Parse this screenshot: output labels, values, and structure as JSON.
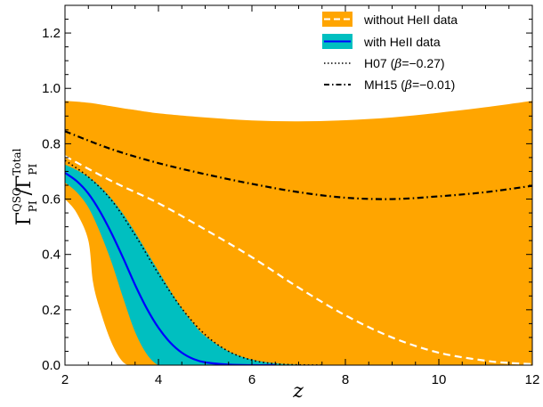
{
  "chart_data": {
    "type": "area",
    "xlabel": "z",
    "ylabel": {
      "main_left": "Γ",
      "sup_left": "QSO",
      "sub_left": "PI",
      "slash": "/",
      "main_right": "Γ",
      "sup_right": "Total",
      "sub_right": "PI"
    },
    "xlim": [
      2,
      12
    ],
    "ylim": [
      0,
      1.3
    ],
    "xticks": [
      2,
      4,
      6,
      8,
      10,
      12
    ],
    "xtick_labels": [
      "2",
      "4",
      "6",
      "8",
      "10",
      "12"
    ],
    "yticks": [
      0.0,
      0.2,
      0.4,
      0.6,
      0.8,
      1.0,
      1.2
    ],
    "ytick_labels": [
      "0.0",
      "0.2",
      "0.4",
      "0.6",
      "0.8",
      "1.0",
      "1.2"
    ],
    "grid": false,
    "legend_position": "top-right",
    "legend": [
      {
        "label": "without HeII data",
        "style": "orange-band-white-dashed"
      },
      {
        "label": "with HeII data",
        "style": "cyan-band-blue-solid"
      },
      {
        "label_prefix": "H07 (",
        "label_beta": "β",
        "label_suffix": "=−0.27)",
        "style": "dotted"
      },
      {
        "label_prefix": "MH15 (",
        "label_beta": "β",
        "label_suffix": "=−0.01)",
        "style": "dashdot"
      }
    ],
    "series": [
      {
        "name": "without HeII data",
        "kind": "band",
        "color": "#FFA500",
        "x": [
          2.0,
          2.25,
          2.5,
          2.6,
          2.75,
          3.0,
          3.25,
          3.5,
          4.0,
          5.0,
          6.0,
          7.0,
          8.0,
          9.0,
          10.0,
          11.0,
          12.0
        ],
        "upper": [
          0.955,
          0.952,
          0.948,
          0.946,
          0.942,
          0.935,
          0.928,
          0.922,
          0.91,
          0.895,
          0.884,
          0.881,
          0.885,
          0.895,
          0.912,
          0.932,
          0.955
        ],
        "lower": [
          0.6,
          0.55,
          0.45,
          0.3,
          0.2,
          0.08,
          0.01,
          0.0,
          0.0,
          0.0,
          0.0,
          0.0,
          0.0,
          0.0,
          0.0,
          0.0,
          0.0
        ]
      },
      {
        "name": "without HeII data median",
        "kind": "line",
        "color": "#FFFFFF",
        "dash": "dashed",
        "x": [
          2,
          3,
          4,
          5,
          6,
          7,
          8,
          9,
          10,
          11,
          11.5,
          12
        ],
        "y": [
          0.755,
          0.665,
          0.585,
          0.49,
          0.39,
          0.28,
          0.18,
          0.1,
          0.045,
          0.016,
          0.008,
          0.004
        ]
      },
      {
        "name": "with HeII data",
        "kind": "band",
        "color": "#00BFC0",
        "x": [
          2.0,
          2.25,
          2.5,
          2.75,
          3.0,
          3.25,
          3.5,
          3.75,
          4.0,
          4.25,
          4.5,
          4.75,
          5.0,
          5.5,
          6.0,
          6.5,
          7.0,
          7.5
        ],
        "upper": [
          0.725,
          0.705,
          0.68,
          0.645,
          0.6,
          0.545,
          0.48,
          0.41,
          0.34,
          0.27,
          0.205,
          0.15,
          0.105,
          0.05,
          0.02,
          0.007,
          0.002,
          0.0
        ],
        "lower": [
          0.66,
          0.625,
          0.57,
          0.48,
          0.37,
          0.24,
          0.12,
          0.04,
          0.0,
          0.0,
          0.0,
          0.0,
          0.0,
          0.0,
          0.0,
          0.0,
          0.0,
          0.0
        ]
      },
      {
        "name": "with HeII data median",
        "kind": "line",
        "color": "#0000FF",
        "dash": "solid",
        "x": [
          2.0,
          2.25,
          2.5,
          2.75,
          3.0,
          3.25,
          3.5,
          3.75,
          4.0,
          4.25,
          4.5,
          4.75,
          5.0,
          5.5,
          6.0,
          6.5
        ],
        "y": [
          0.695,
          0.665,
          0.62,
          0.555,
          0.475,
          0.385,
          0.29,
          0.205,
          0.135,
          0.082,
          0.045,
          0.022,
          0.01,
          0.002,
          0.0,
          0.0
        ]
      },
      {
        "name": "H07",
        "kind": "line",
        "color": "#000000",
        "dash": "dotted",
        "x": [
          2.0,
          2.5,
          3.0,
          3.5,
          4.0,
          4.5,
          5.0,
          5.5,
          6.0,
          6.5,
          7.0,
          7.5
        ],
        "y": [
          0.74,
          0.68,
          0.595,
          0.47,
          0.33,
          0.205,
          0.11,
          0.05,
          0.018,
          0.005,
          0.001,
          0.0
        ]
      },
      {
        "name": "MH15",
        "kind": "line",
        "color": "#000000",
        "dash": "dashdot",
        "x": [
          2.0,
          3.0,
          4.0,
          5.0,
          6.0,
          7.0,
          8.0,
          9.0,
          10.0,
          11.0,
          12.0
        ],
        "y": [
          0.845,
          0.78,
          0.73,
          0.69,
          0.655,
          0.625,
          0.605,
          0.6,
          0.61,
          0.625,
          0.648
        ]
      }
    ]
  }
}
